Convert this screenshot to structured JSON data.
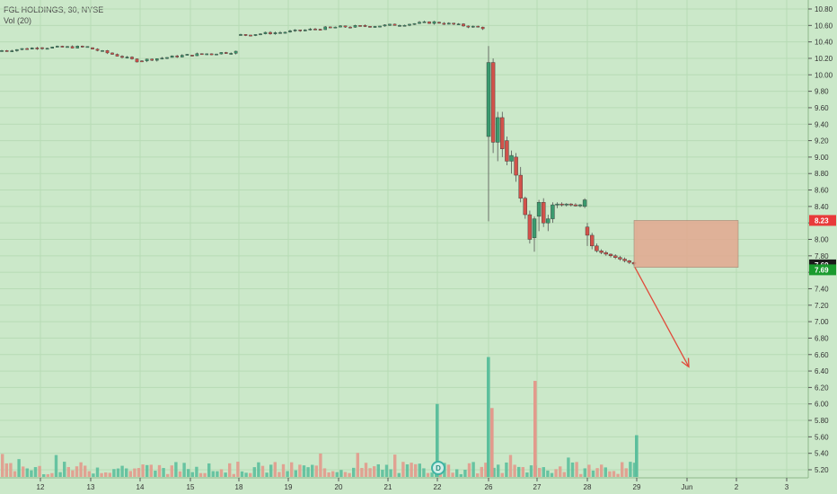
{
  "legend": {
    "title": "FGL HOLDINGS, 30, NYSE",
    "volume": "Vol (20)"
  },
  "colors": {
    "background": "#cbe8c9",
    "up": "#3a9a6e",
    "down": "#d2524a",
    "volume_up": "#5cbf9c",
    "volume_down": "#e29a8c",
    "grid": "#b7dbb5",
    "zone_fill": "#e3a890",
    "arrow": "#e04a3a",
    "tag_red": "#e83a3a",
    "tag_green": "#1a9b2e",
    "tag_dark": "#1b1b1b"
  },
  "events": {
    "dividend_marker": "D"
  },
  "chart_data": {
    "type": "candlestick",
    "title": "FGL HOLDINGS, 30, NYSE",
    "volume_label": "Vol (20)",
    "y_axis": {
      "range": [
        5.1,
        10.9
      ],
      "ticks": [
        "10.80",
        "10.60",
        "10.40",
        "10.20",
        "10.00",
        "9.80",
        "9.60",
        "9.40",
        "9.20",
        "9.00",
        "8.80",
        "8.60",
        "8.40",
        "8.20",
        "8.00",
        "7.80",
        "7.60",
        "7.40",
        "7.20",
        "7.00",
        "6.80",
        "6.60",
        "6.40",
        "6.20",
        "6.00",
        "5.80",
        "5.60",
        "5.40",
        "5.20"
      ]
    },
    "x_axis": {
      "ticks": [
        "12",
        "13",
        "14",
        "15",
        "18",
        "19",
        "20",
        "21",
        "22",
        "26",
        "27",
        "28",
        "29",
        "Jun",
        "2",
        "3"
      ]
    },
    "price_tags": [
      {
        "label": "8.23",
        "value": 8.23,
        "color": "red"
      },
      {
        "label": "7.69",
        "value": 7.69,
        "color": "dark"
      },
      {
        "label": "7.69",
        "value": 7.63,
        "color": "green"
      }
    ],
    "zone": {
      "top": 8.23,
      "bottom": 7.66,
      "from_label": "29",
      "to_label": "2"
    },
    "arrow": {
      "from_value": 7.66,
      "to_value": 6.45
    },
    "price_segments": [
      {
        "from": "11",
        "to": "12",
        "start": 10.29,
        "end": 10.33
      },
      {
        "from": "12",
        "to": "13",
        "start": 10.33,
        "end": 10.34
      },
      {
        "from": "13",
        "to": "14",
        "start": 10.33,
        "end": 10.17
      },
      {
        "from": "14",
        "to": "15",
        "start": 10.17,
        "end": 10.24
      },
      {
        "from": "15",
        "to": "18",
        "start": 10.24,
        "end": 10.28
      },
      {
        "from": "18",
        "to": "19",
        "start": 10.48,
        "end": 10.52
      },
      {
        "from": "19",
        "to": "20",
        "start": 10.52,
        "end": 10.58
      },
      {
        "from": "20",
        "to": "21",
        "start": 10.58,
        "end": 10.6
      },
      {
        "from": "21",
        "to": "22",
        "start": 10.6,
        "end": 10.64
      },
      {
        "from": "22",
        "to": "22.95",
        "start": 10.64,
        "end": 10.57
      }
    ],
    "gap_candles": [
      {
        "o": 9.25,
        "h": 10.35,
        "l": 8.22,
        "c": 10.15
      },
      {
        "o": 10.15,
        "h": 10.2,
        "l": 9.05,
        "c": 9.18
      },
      {
        "o": 9.18,
        "h": 9.55,
        "l": 8.95,
        "c": 9.48
      },
      {
        "o": 9.48,
        "h": 9.55,
        "l": 9.0,
        "c": 9.1
      },
      {
        "o": 9.2,
        "h": 9.25,
        "l": 8.9,
        "c": 8.95
      },
      {
        "o": 8.95,
        "h": 9.08,
        "l": 8.8,
        "c": 9.02
      },
      {
        "o": 9.0,
        "h": 9.05,
        "l": 8.7,
        "c": 8.78
      },
      {
        "o": 8.78,
        "h": 8.88,
        "l": 8.45,
        "c": 8.5
      },
      {
        "o": 8.5,
        "h": 8.52,
        "l": 8.25,
        "c": 8.3
      },
      {
        "o": 8.3,
        "h": 8.35,
        "l": 7.95,
        "c": 8.0
      },
      {
        "o": 8.02,
        "h": 8.28,
        "l": 7.85,
        "c": 8.25
      },
      {
        "o": 8.28,
        "h": 8.48,
        "l": 8.1,
        "c": 8.45
      },
      {
        "o": 8.45,
        "h": 8.5,
        "l": 8.15,
        "c": 8.2
      },
      {
        "o": 8.2,
        "h": 8.3,
        "l": 8.1,
        "c": 8.25
      },
      {
        "o": 8.25,
        "h": 8.45,
        "l": 8.2,
        "c": 8.42
      },
      {
        "o": 8.42,
        "h": 8.45,
        "l": 8.38,
        "c": 8.43
      },
      {
        "o": 8.43,
        "h": 8.45,
        "l": 8.4,
        "c": 8.42
      },
      {
        "o": 8.42,
        "h": 8.44,
        "l": 8.4,
        "c": 8.43
      },
      {
        "o": 8.43,
        "h": 8.44,
        "l": 8.4,
        "c": 8.42
      },
      {
        "o": 8.42,
        "h": 8.44,
        "l": 8.4,
        "c": 8.41
      },
      {
        "o": 8.41,
        "h": 8.43,
        "l": 8.39,
        "c": 8.42
      },
      {
        "o": 8.4,
        "h": 8.5,
        "l": 8.38,
        "c": 8.48
      },
      {
        "o": 8.15,
        "h": 8.2,
        "l": 7.92,
        "c": 8.05
      },
      {
        "o": 8.05,
        "h": 8.08,
        "l": 7.88,
        "c": 7.92
      },
      {
        "o": 7.92,
        "h": 7.95,
        "l": 7.84,
        "c": 7.86
      },
      {
        "o": 7.86,
        "h": 7.88,
        "l": 7.82,
        "c": 7.84
      },
      {
        "o": 7.84,
        "h": 7.86,
        "l": 7.8,
        "c": 7.82
      },
      {
        "o": 7.82,
        "h": 7.83,
        "l": 7.78,
        "c": 7.8
      },
      {
        "o": 7.8,
        "h": 7.82,
        "l": 7.76,
        "c": 7.78
      },
      {
        "o": 7.78,
        "h": 7.8,
        "l": 7.74,
        "c": 7.76
      },
      {
        "o": 7.76,
        "h": 7.78,
        "l": 7.72,
        "c": 7.74
      },
      {
        "o": 7.74,
        "h": 7.75,
        "l": 7.7,
        "c": 7.72
      },
      {
        "o": 7.72,
        "h": 7.73,
        "l": 7.68,
        "c": 7.7
      }
    ],
    "volume_spikes": [
      {
        "at": "22",
        "value": 6.0,
        "dir": "up"
      },
      {
        "at": "26",
        "value": 6.57,
        "dir": "up"
      },
      {
        "at": "26.05",
        "value": 5.95,
        "dir": "down"
      },
      {
        "at": "26.9",
        "value": 6.28,
        "dir": "down"
      },
      {
        "at": "29",
        "value": 5.62,
        "dir": "up"
      }
    ]
  }
}
